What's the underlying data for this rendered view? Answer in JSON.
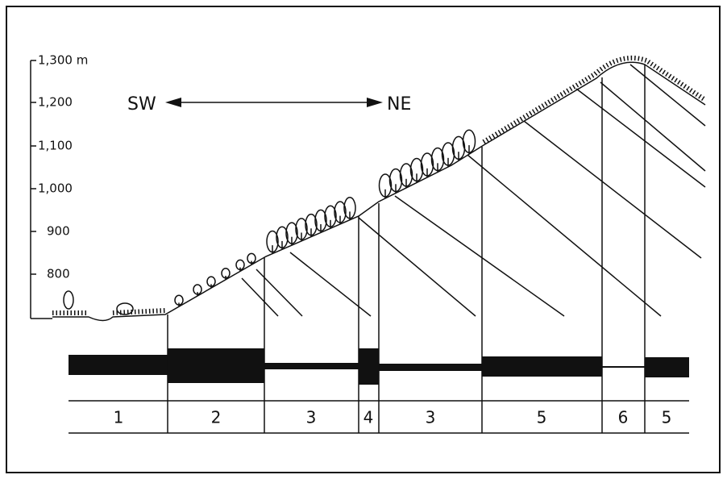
{
  "axis": {
    "ticks": [
      "1,300 m",
      "1,200",
      "1,100",
      "1,000",
      "900",
      "800"
    ]
  },
  "direction": {
    "from": "SW",
    "to": "NE"
  },
  "zones": [
    "1",
    "2",
    "3",
    "4",
    "3",
    "5",
    "6",
    "5"
  ]
}
